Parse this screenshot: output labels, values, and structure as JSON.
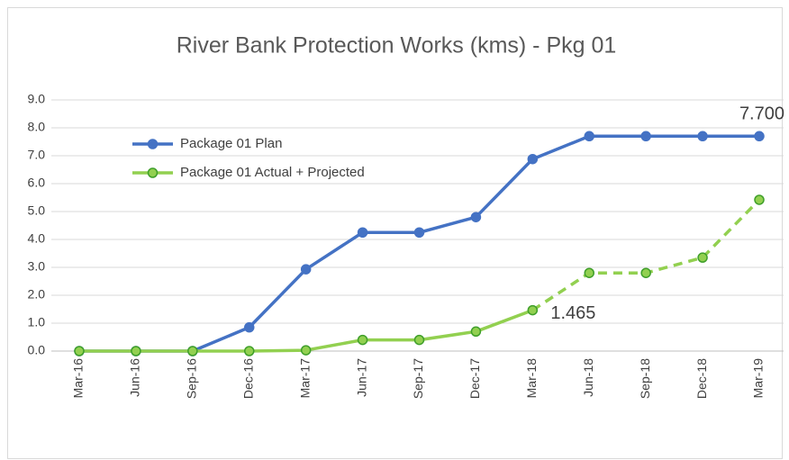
{
  "chart_data": {
    "type": "line",
    "title": "River Bank Protection Works (kms) - Pkg 01",
    "categories": [
      "Mar-16",
      "Jun-16",
      "Sep-16",
      "Dec-16",
      "Mar-17",
      "Jun-17",
      "Sep-17",
      "Dec-17",
      "Mar-18",
      "Jun-18",
      "Sep-18",
      "Dec-18",
      "Mar-19"
    ],
    "series": [
      {
        "name": "Package 01 Plan",
        "color": "#4472c4",
        "marker_edge": "#4472c4",
        "values": [
          0,
          0,
          0,
          0.85,
          2.93,
          4.25,
          4.25,
          4.8,
          6.88,
          7.7,
          7.7,
          7.7,
          7.7
        ],
        "value_labels": [
          null,
          null,
          null,
          null,
          null,
          null,
          null,
          null,
          null,
          null,
          null,
          null,
          "7.700"
        ]
      },
      {
        "name": "Package 01 Actual + Projected",
        "color": "#92d050",
        "marker_edge": "#3f9f2a",
        "dash_from_index": 8,
        "values": [
          0,
          0,
          0,
          0,
          0.03,
          0.4,
          0.4,
          0.7,
          1.465,
          2.8,
          2.8,
          3.35,
          5.42
        ],
        "value_labels": [
          null,
          null,
          null,
          null,
          null,
          null,
          null,
          null,
          "1.465",
          null,
          null,
          null,
          null
        ]
      }
    ],
    "ylim": [
      0,
      9
    ],
    "yticks": [
      {
        "value": 0,
        "label": "0.0"
      },
      {
        "value": 1,
        "label": "1.0"
      },
      {
        "value": 2,
        "label": "2.0"
      },
      {
        "value": 3,
        "label": "3.0"
      },
      {
        "value": 4,
        "label": "4.0"
      },
      {
        "value": 5,
        "label": "5.0"
      },
      {
        "value": 6,
        "label": "6.0"
      },
      {
        "value": 7,
        "label": "7.0"
      },
      {
        "value": 8,
        "label": "8.0"
      },
      {
        "value": 9,
        "label": "9.0"
      }
    ],
    "grid": true,
    "legend": "upper left"
  }
}
